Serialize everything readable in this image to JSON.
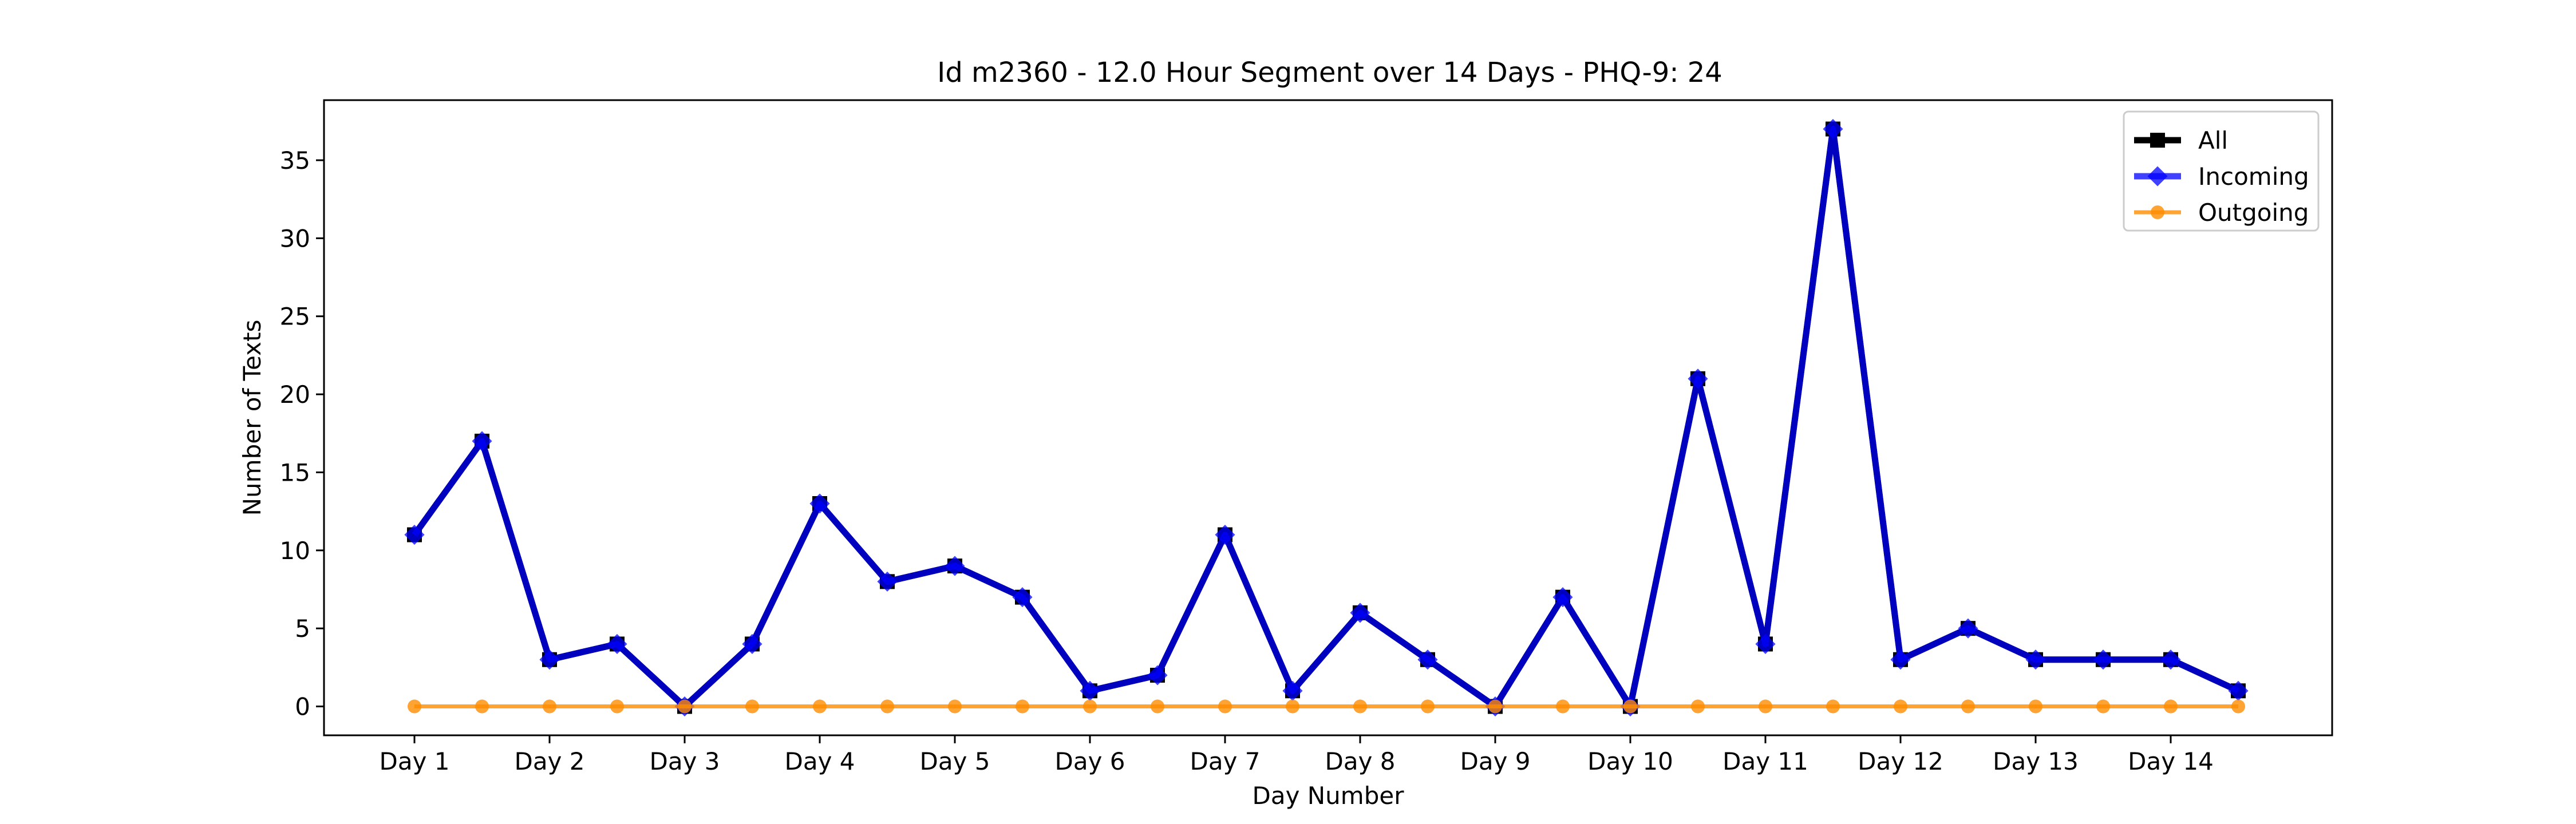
{
  "chart_data": {
    "type": "line",
    "title": "Id m2360 - 12.0 Hour Segment over 14 Days - PHQ-9: 24",
    "xlabel": "Day Number",
    "ylabel": "Number of Texts",
    "ylim": [
      -1.85,
      38.85
    ],
    "yticks": [
      0,
      5,
      10,
      15,
      20,
      25,
      30,
      35
    ],
    "xtick_labels": [
      "Day 1",
      "Day 2",
      "Day 3",
      "Day 4",
      "Day 5",
      "Day 6",
      "Day 7",
      "Day 8",
      "Day 9",
      "Day 10",
      "Day 11",
      "Day 12",
      "Day 13",
      "Day 14"
    ],
    "x_points": [
      "Day 1 AM",
      "Day 1 PM",
      "Day 2 AM",
      "Day 2 PM",
      "Day 3 AM",
      "Day 3 PM",
      "Day 4 AM",
      "Day 4 PM",
      "Day 5 AM",
      "Day 5 PM",
      "Day 6 AM",
      "Day 6 PM",
      "Day 7 AM",
      "Day 7 PM",
      "Day 8 AM",
      "Day 8 PM",
      "Day 9 AM",
      "Day 9 PM",
      "Day 10 AM",
      "Day 10 PM",
      "Day 11 AM",
      "Day 11 PM",
      "Day 12 AM",
      "Day 12 PM",
      "Day 13 AM",
      "Day 13 PM",
      "Day 14 AM",
      "Day 14 PM"
    ],
    "series": [
      {
        "name": "All",
        "color": "#000000",
        "marker": "square",
        "values": [
          11,
          17,
          3,
          4,
          0,
          4,
          13,
          8,
          9,
          7,
          1,
          2,
          11,
          1,
          6,
          3,
          0,
          7,
          0,
          21,
          4,
          37,
          3,
          5,
          3,
          3,
          3,
          1
        ]
      },
      {
        "name": "Incoming",
        "color": "#0000ff",
        "marker": "diamond",
        "values": [
          11,
          17,
          3,
          4,
          0,
          4,
          13,
          8,
          9,
          7,
          1,
          2,
          11,
          1,
          6,
          3,
          0,
          7,
          0,
          21,
          4,
          37,
          3,
          5,
          3,
          3,
          3,
          1
        ]
      },
      {
        "name": "Outgoing",
        "color": "#ff8c00",
        "marker": "circle",
        "values": [
          0,
          0,
          0,
          0,
          0,
          0,
          0,
          0,
          0,
          0,
          0,
          0,
          0,
          0,
          0,
          0,
          0,
          0,
          0,
          0,
          0,
          0,
          0,
          0,
          0,
          0,
          0,
          0
        ]
      }
    ],
    "legend_position": "top-right",
    "grid": false
  }
}
